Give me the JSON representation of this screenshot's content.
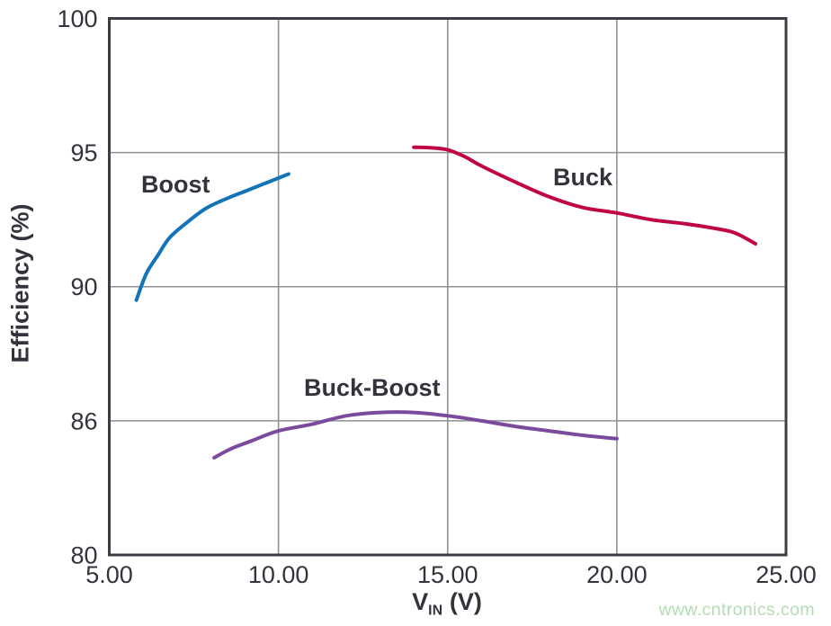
{
  "watermark": {
    "text": "www.cntronics.com",
    "color": "#b3ddb3"
  },
  "chart_data": {
    "type": "line",
    "title": "",
    "xlabel": "VIN (V)",
    "xlabel_main": "V",
    "xlabel_sub": "IN",
    "xlabel_unit": "(V)",
    "ylabel": "Efficiency (%)",
    "grid": true,
    "legend_position": "inline-labels",
    "x_range": [
      5,
      25
    ],
    "x_ticks": {
      "values": [
        5,
        10,
        15,
        20,
        25
      ],
      "labels": [
        "5.00",
        "10.00",
        "15.00",
        "20.00",
        "25.00"
      ]
    },
    "y_ticks": {
      "values": [
        100,
        95,
        90,
        86,
        80
      ],
      "labels": [
        "100",
        "95",
        "90",
        "86",
        "80"
      ]
    },
    "y_axis_note": "non-linear axis: tick values 100, 95, 90, 86, 80 are evenly spaced",
    "colors": {
      "axis_border": "#3c3d45",
      "gridline": "#8f9094",
      "text": "#33343b"
    },
    "series": [
      {
        "name": "Boost",
        "color": "#1373b9",
        "points": [
          [
            5.8,
            89.6
          ],
          [
            6.1,
            90.5
          ],
          [
            6.45,
            91.2
          ],
          [
            6.8,
            91.85
          ],
          [
            7.4,
            92.5
          ],
          [
            7.9,
            92.95
          ],
          [
            8.5,
            93.3
          ],
          [
            9.0,
            93.55
          ],
          [
            9.5,
            93.8
          ],
          [
            10.0,
            94.05
          ],
          [
            10.3,
            94.2
          ]
        ]
      },
      {
        "name": "Buck",
        "color": "#c00546",
        "points": [
          [
            14.0,
            95.2
          ],
          [
            14.5,
            95.18
          ],
          [
            15.0,
            95.1
          ],
          [
            15.5,
            94.85
          ],
          [
            16.0,
            94.5
          ],
          [
            17.0,
            93.9
          ],
          [
            18.0,
            93.35
          ],
          [
            19.0,
            92.95
          ],
          [
            20.0,
            92.75
          ],
          [
            21.0,
            92.5
          ],
          [
            22.0,
            92.35
          ],
          [
            23.0,
            92.15
          ],
          [
            23.5,
            92.0
          ],
          [
            24.1,
            91.6
          ]
        ]
      },
      {
        "name": "Buck-Boost",
        "color": "#7a4a9c",
        "points": [
          [
            8.1,
            84.35
          ],
          [
            8.6,
            84.75
          ],
          [
            9.2,
            85.1
          ],
          [
            10.0,
            85.55
          ],
          [
            11.0,
            85.85
          ],
          [
            12.0,
            86.15
          ],
          [
            13.0,
            86.25
          ],
          [
            14.0,
            86.25
          ],
          [
            15.0,
            86.15
          ],
          [
            16.0,
            86.0
          ],
          [
            17.0,
            85.75
          ],
          [
            18.0,
            85.55
          ],
          [
            19.0,
            85.35
          ],
          [
            20.0,
            85.2
          ]
        ]
      }
    ]
  }
}
